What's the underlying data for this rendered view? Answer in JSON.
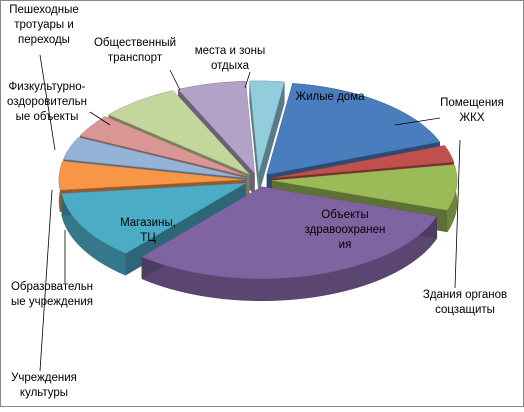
{
  "chart_data": {
    "type": "pie",
    "categories": [
      "Жилые дома",
      "Помещения\nЖКХ",
      "Здания органов\nсоцзащиты",
      "Объекты\nздравоохранен\nия",
      "Магазины,\nТЦ",
      "Образовательн\nые учреждения",
      "Учреждения\nкультуры",
      "Пешеходные\nтротуары и\nпереходы",
      "Физкультурно-\nоздоровительн\nые объекты",
      "Общественный\nтранспорт",
      "места и зоны\nотдыха"
    ],
    "values": [
      17,
      3,
      8,
      31,
      12,
      5,
      4,
      4,
      7,
      6,
      3
    ],
    "colors": [
      "#4a7dbe",
      "#c0504d",
      "#9bbb59",
      "#8064a2",
      "#4bacc6",
      "#f79646",
      "#95b3d7",
      "#d99694",
      "#c3d69b",
      "#b3a2c7",
      "#93cddd"
    ]
  }
}
